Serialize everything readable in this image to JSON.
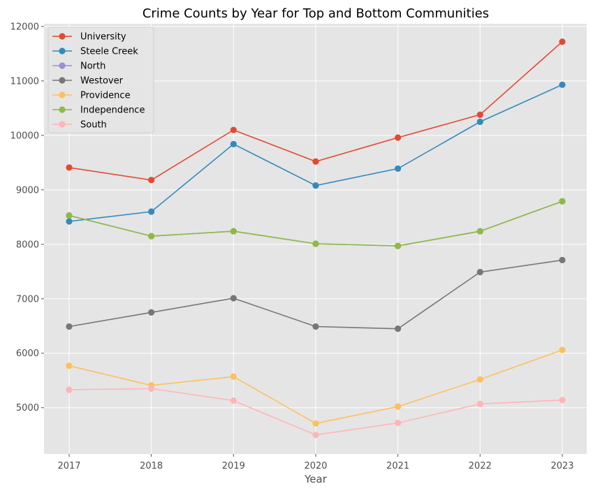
{
  "chart_data": {
    "type": "line",
    "title": "Crime Counts by Year for Top and Bottom Communities",
    "xlabel": "Year",
    "ylabel": "",
    "x": [
      2017,
      2018,
      2019,
      2020,
      2021,
      2022,
      2023
    ],
    "x_tick_labels": [
      "2017",
      "2018",
      "2019",
      "2020",
      "2021",
      "2022",
      "2023"
    ],
    "ylim": [
      4150,
      12050
    ],
    "y_ticks": [
      5000,
      6000,
      7000,
      8000,
      9000,
      10000,
      11000,
      12000
    ],
    "y_tick_labels": [
      "5000",
      "6000",
      "7000",
      "8000",
      "9000",
      "10000",
      "11000",
      "12000"
    ],
    "grid": true,
    "legend_position": "top-left",
    "series": [
      {
        "name": "University",
        "color": "#E24A33",
        "values": [
          9410,
          9180,
          10100,
          9520,
          9960,
          10380,
          11720
        ]
      },
      {
        "name": "Steele Creek",
        "color": "#348ABD",
        "values": [
          8420,
          8600,
          9840,
          9080,
          9390,
          10250,
          10930
        ]
      },
      {
        "name": "North",
        "color": "#988ED5",
        "values": [
          8530,
          8150,
          8240,
          8010,
          7970,
          8240,
          8790
        ]
      },
      {
        "name": "Westover",
        "color": "#777777",
        "values": [
          6490,
          6750,
          7010,
          6490,
          6450,
          7490,
          7710
        ]
      },
      {
        "name": "Providence",
        "color": "#FBC15E",
        "values": [
          5770,
          5410,
          5570,
          4710,
          5020,
          5520,
          6060
        ]
      },
      {
        "name": "Independence",
        "color": "#8EBA42",
        "values": [
          8530,
          8150,
          8240,
          8010,
          7970,
          8240,
          8790
        ]
      },
      {
        "name": "South",
        "color": "#FFB5B8",
        "values": [
          5330,
          5350,
          5130,
          4500,
          4720,
          5070,
          5140
        ]
      }
    ]
  }
}
